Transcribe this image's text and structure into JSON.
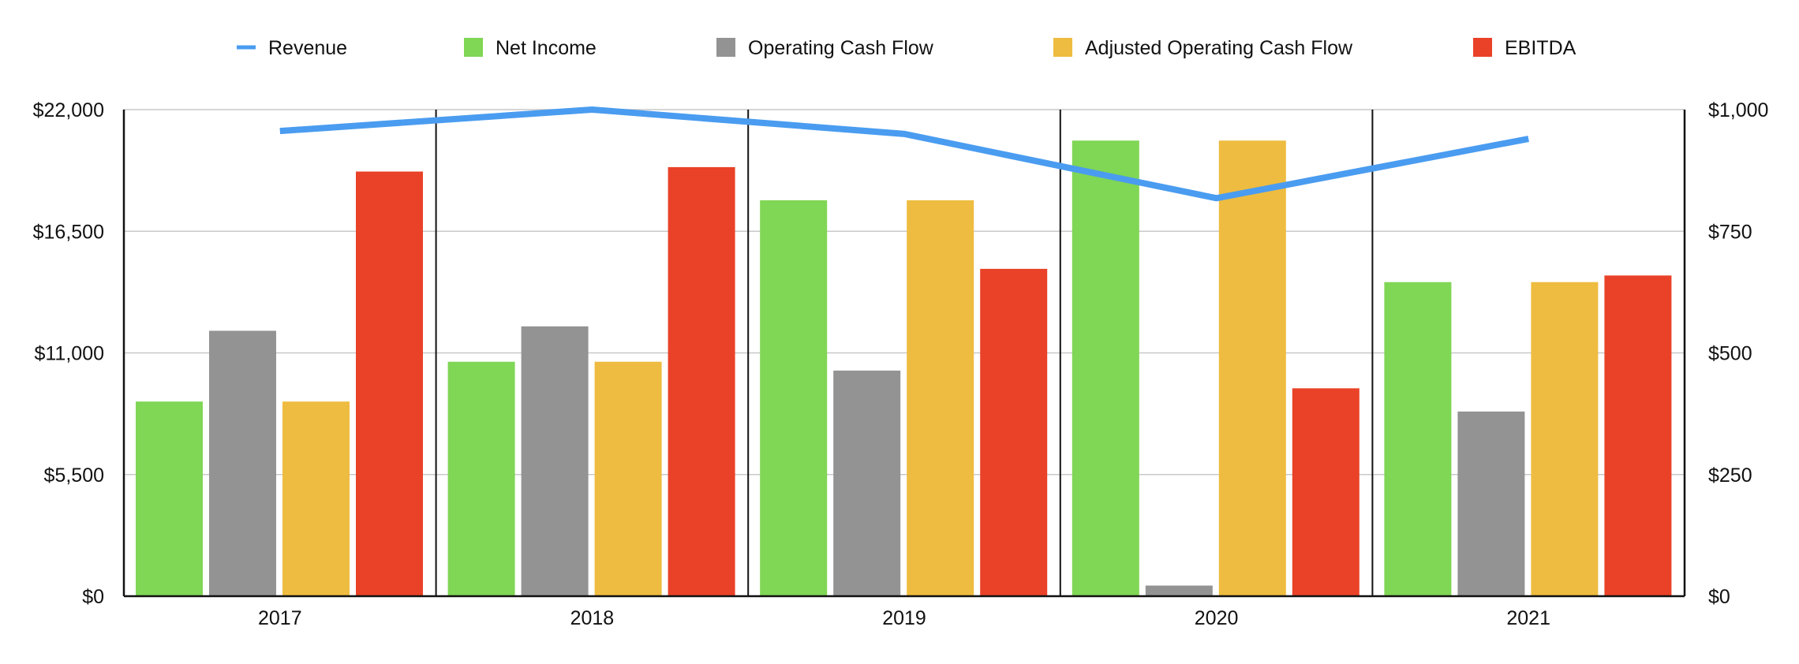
{
  "chart_data": {
    "type": "bar",
    "categories": [
      "2017",
      "2018",
      "2019",
      "2020",
      "2021"
    ],
    "legend": {
      "placement": "top"
    },
    "grid": true,
    "y_left": {
      "ylim": [
        0,
        22000
      ],
      "ticks": [
        0,
        5500,
        11000,
        16500,
        22000
      ],
      "tick_labels": [
        "$0",
        "$5,500",
        "$11,000",
        "$16,500",
        "$22,000"
      ]
    },
    "y_right": {
      "ylim": [
        0,
        1000
      ],
      "ticks": [
        0,
        250,
        500,
        750,
        1000
      ],
      "tick_labels": [
        "$0",
        "$250",
        "$500",
        "$750",
        "$1,000"
      ]
    },
    "series": [
      {
        "name": "Revenue",
        "type": "line",
        "axis": "right",
        "color": "#4A9CF0",
        "values": [
          956,
          1000,
          950,
          818,
          940
        ]
      },
      {
        "name": "Net Income",
        "type": "bar",
        "axis": "left",
        "color": "#80D655",
        "values": [
          8800,
          10600,
          17900,
          20600,
          14200
        ]
      },
      {
        "name": "Operating Cash Flow",
        "type": "bar",
        "axis": "left",
        "color": "#939393",
        "values": [
          12000,
          12200,
          10200,
          480,
          8350
        ]
      },
      {
        "name": "Adjusted Operating Cash Flow",
        "type": "bar",
        "axis": "left",
        "color": "#EEBC40",
        "values": [
          8800,
          10600,
          17900,
          20600,
          14200
        ]
      },
      {
        "name": "EBITDA",
        "type": "bar",
        "axis": "left",
        "color": "#E94228",
        "values": [
          19200,
          19400,
          14800,
          9400,
          14500
        ]
      }
    ]
  }
}
